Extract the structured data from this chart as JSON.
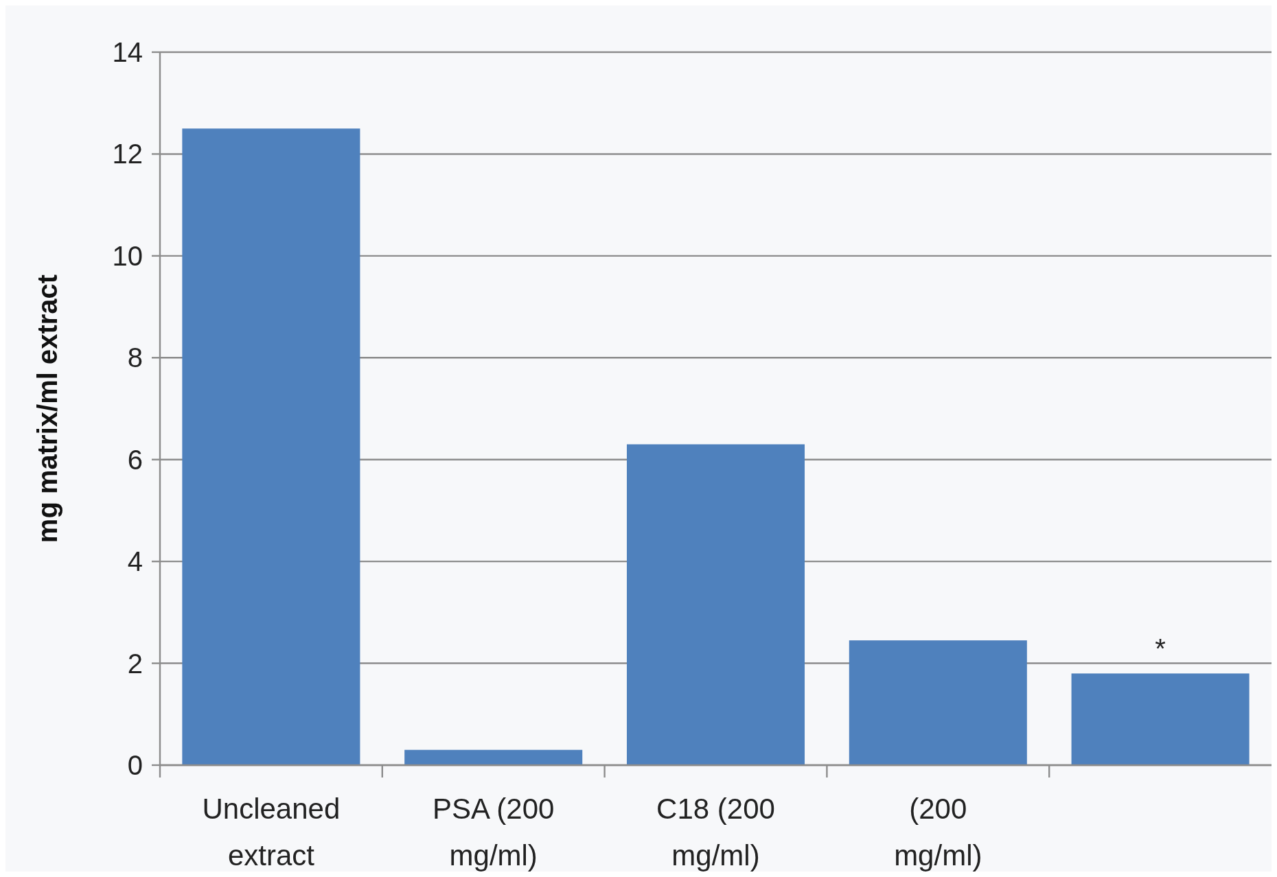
{
  "chart_data": {
    "type": "bar",
    "ylabel": "mg matrix/ml extract",
    "categories": [
      "Uncleaned extract",
      "PSA (200 mg/ml)",
      "C18 (200 mg/ml)",
      "(200 mg/ml)",
      null
    ],
    "values": [
      12.5,
      0.3,
      6.3,
      2.45,
      1.8
    ],
    "value_labels": [
      null,
      null,
      null,
      null,
      "*"
    ],
    "color": "#4f81bd",
    "ylim": [
      0,
      14
    ],
    "yticks": [
      0,
      2,
      4,
      6,
      8,
      10,
      12,
      14
    ],
    "grid": "y"
  }
}
